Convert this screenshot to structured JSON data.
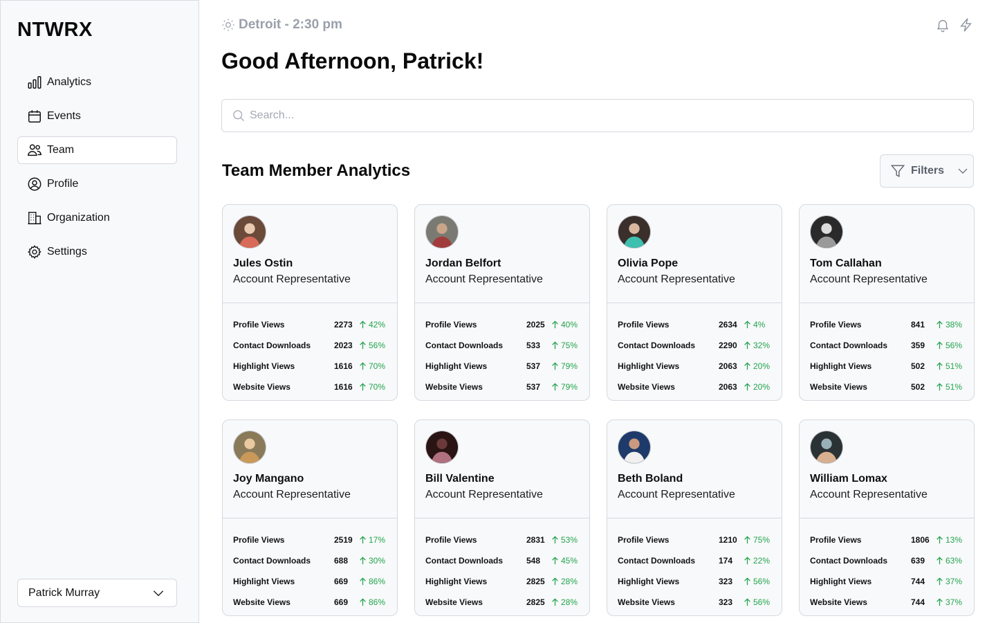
{
  "app": {
    "logo": "NTWRX"
  },
  "sidebar": {
    "items": [
      {
        "label": "Analytics",
        "icon": "bar-chart-icon",
        "active": false
      },
      {
        "label": "Events",
        "icon": "calendar-icon",
        "active": false
      },
      {
        "label": "Team",
        "icon": "users-icon",
        "active": true
      },
      {
        "label": "Profile",
        "icon": "user-circle-icon",
        "active": false
      },
      {
        "label": "Organization",
        "icon": "building-icon",
        "active": false
      },
      {
        "label": "Settings",
        "icon": "gear-icon",
        "active": false
      }
    ],
    "user_select": {
      "value": "Patrick Murray"
    }
  },
  "header": {
    "location": "Detroit - 2:30 pm",
    "greeting": "Good Afternoon, Patrick!",
    "icons": [
      "bell-icon",
      "lightning-icon"
    ]
  },
  "search": {
    "placeholder": "Search...",
    "value": ""
  },
  "section": {
    "title": "Team Member Analytics",
    "filters_label": "Filters"
  },
  "colors": {
    "positive": "#22a44c",
    "muted": "#9aa0ab",
    "border": "#d5d8de",
    "card_bg": "#f8f9fb"
  },
  "stat_labels": [
    "Profile Views",
    "Contact Downloads",
    "Highlight Views",
    "Website Views"
  ],
  "members": [
    {
      "name": "Jules Ostin",
      "role": "Account Representative",
      "stats": [
        {
          "value": "2273",
          "delta": "42%"
        },
        {
          "value": "2023",
          "delta": "56%"
        },
        {
          "value": "1616",
          "delta": "70%"
        },
        {
          "value": "1616",
          "delta": "70%"
        }
      ]
    },
    {
      "name": "Jordan Belfort",
      "role": "Account Representative",
      "stats": [
        {
          "value": "2025",
          "delta": "40%"
        },
        {
          "value": "533",
          "delta": "75%"
        },
        {
          "value": "537",
          "delta": "79%"
        },
        {
          "value": "537",
          "delta": "79%"
        }
      ]
    },
    {
      "name": "Olivia Pope",
      "role": "Account Representative",
      "stats": [
        {
          "value": "2634",
          "delta": "4%"
        },
        {
          "value": "2290",
          "delta": "32%"
        },
        {
          "value": "2063",
          "delta": "20%"
        },
        {
          "value": "2063",
          "delta": "20%"
        }
      ]
    },
    {
      "name": "Tom Callahan",
      "role": "Account Representative",
      "stats": [
        {
          "value": "841",
          "delta": "38%"
        },
        {
          "value": "359",
          "delta": "56%"
        },
        {
          "value": "502",
          "delta": "51%"
        },
        {
          "value": "502",
          "delta": "51%"
        }
      ]
    },
    {
      "name": "Joy Mangano",
      "role": "Account Representative",
      "stats": [
        {
          "value": "2519",
          "delta": "17%"
        },
        {
          "value": "688",
          "delta": "30%"
        },
        {
          "value": "669",
          "delta": "86%"
        },
        {
          "value": "669",
          "delta": "86%"
        }
      ]
    },
    {
      "name": "Bill Valentine",
      "role": "Account Representative",
      "stats": [
        {
          "value": "2831",
          "delta": "53%"
        },
        {
          "value": "548",
          "delta": "45%"
        },
        {
          "value": "2825",
          "delta": "28%"
        },
        {
          "value": "2825",
          "delta": "28%"
        }
      ]
    },
    {
      "name": "Beth Boland",
      "role": "Account Representative",
      "stats": [
        {
          "value": "1210",
          "delta": "75%"
        },
        {
          "value": "174",
          "delta": "22%"
        },
        {
          "value": "323",
          "delta": "56%"
        },
        {
          "value": "323",
          "delta": "56%"
        }
      ]
    },
    {
      "name": "William Lomax",
      "role": "Account Representative",
      "stats": [
        {
          "value": "1806",
          "delta": "13%"
        },
        {
          "value": "639",
          "delta": "63%"
        },
        {
          "value": "744",
          "delta": "37%"
        },
        {
          "value": "744",
          "delta": "37%"
        }
      ]
    }
  ]
}
